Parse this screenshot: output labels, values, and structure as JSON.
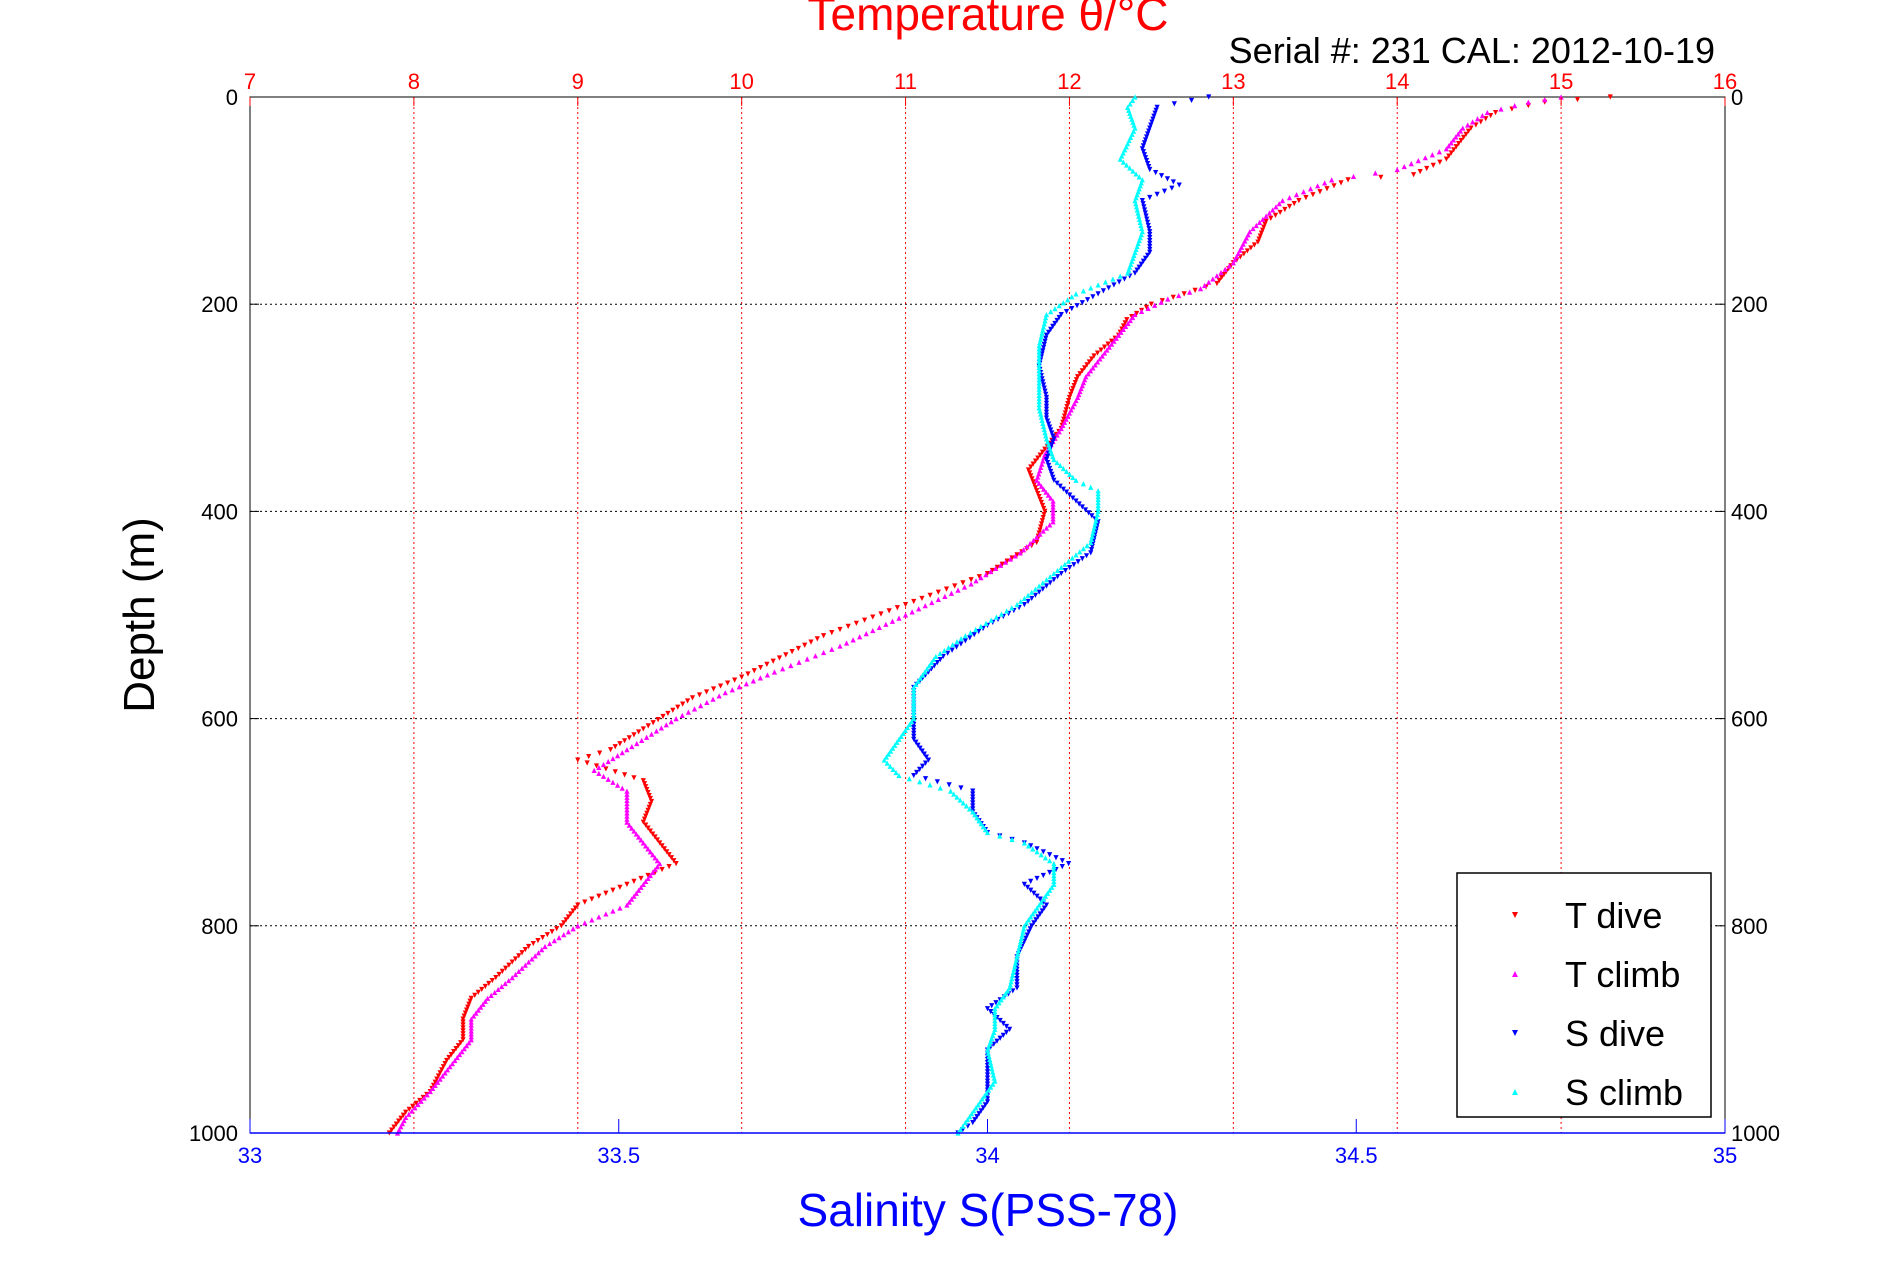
{
  "chart_data": {
    "type": "scatter",
    "header": "Serial #: 231  CAL: 2012-10-19",
    "x_top": {
      "label": "Temperature θ/°C",
      "range": [
        7,
        16
      ],
      "ticks": [
        "7",
        "8",
        "9",
        "10",
        "11",
        "12",
        "13",
        "14",
        "15",
        "16"
      ],
      "color": "#ff0000"
    },
    "x_bottom": {
      "label": "Salinity S(PSS-78)",
      "range": [
        33,
        35
      ],
      "ticks": [
        "33",
        "33.5",
        "34",
        "34.5",
        "35"
      ],
      "color": "#0000ff"
    },
    "y": {
      "label": "Depth (m)",
      "range": [
        0,
        1000
      ],
      "reversed": true,
      "ticks": [
        "0",
        "200",
        "400",
        "600",
        "800",
        "1000"
      ]
    },
    "grid": "on",
    "legend": {
      "position": "bottom-right",
      "entries": [
        "T dive",
        "T climb",
        "S dive",
        "S climb"
      ]
    },
    "series": [
      {
        "name": "T dive",
        "axis": "temperature",
        "color": "#ff0000",
        "marker": "triangle-down",
        "points": [
          [
            15.3,
            0
          ],
          [
            14.9,
            5
          ],
          [
            14.6,
            15
          ],
          [
            14.45,
            30
          ],
          [
            14.3,
            60
          ],
          [
            14.1,
            75
          ],
          [
            13.7,
            80
          ],
          [
            13.4,
            100
          ],
          [
            13.2,
            120
          ],
          [
            13.15,
            140
          ],
          [
            13.0,
            160
          ],
          [
            12.9,
            180
          ],
          [
            12.7,
            190
          ],
          [
            12.5,
            200
          ],
          [
            12.35,
            215
          ],
          [
            12.3,
            230
          ],
          [
            12.15,
            250
          ],
          [
            12.05,
            270
          ],
          [
            12.0,
            290
          ],
          [
            11.95,
            320
          ],
          [
            11.85,
            340
          ],
          [
            11.75,
            360
          ],
          [
            11.8,
            380
          ],
          [
            11.85,
            400
          ],
          [
            11.8,
            430
          ],
          [
            11.5,
            460
          ],
          [
            11.0,
            490
          ],
          [
            10.5,
            520
          ],
          [
            10.0,
            560
          ],
          [
            9.7,
            580
          ],
          [
            9.4,
            610
          ],
          [
            9.2,
            630
          ],
          [
            9.0,
            640
          ],
          [
            9.4,
            660
          ],
          [
            9.45,
            680
          ],
          [
            9.4,
            700
          ],
          [
            9.5,
            720
          ],
          [
            9.6,
            740
          ],
          [
            9.3,
            760
          ],
          [
            9.0,
            780
          ],
          [
            8.9,
            800
          ],
          [
            8.7,
            820
          ],
          [
            8.5,
            850
          ],
          [
            8.35,
            870
          ],
          [
            8.3,
            890
          ],
          [
            8.3,
            910
          ],
          [
            8.2,
            930
          ],
          [
            8.1,
            960
          ],
          [
            7.95,
            980
          ],
          [
            7.85,
            1000
          ]
        ]
      },
      {
        "name": "T climb",
        "axis": "temperature",
        "color": "#ff00ff",
        "marker": "triangle-up",
        "points": [
          [
            15.0,
            0
          ],
          [
            14.8,
            5
          ],
          [
            14.55,
            15
          ],
          [
            14.4,
            30
          ],
          [
            14.3,
            50
          ],
          [
            14.0,
            70
          ],
          [
            13.6,
            80
          ],
          [
            13.3,
            100
          ],
          [
            13.1,
            130
          ],
          [
            13.0,
            160
          ],
          [
            12.8,
            185
          ],
          [
            12.6,
            195
          ],
          [
            12.4,
            210
          ],
          [
            12.3,
            230
          ],
          [
            12.2,
            250
          ],
          [
            12.1,
            270
          ],
          [
            12.05,
            290
          ],
          [
            11.95,
            320
          ],
          [
            11.85,
            345
          ],
          [
            11.8,
            370
          ],
          [
            11.9,
            390
          ],
          [
            11.9,
            410
          ],
          [
            11.7,
            440
          ],
          [
            11.4,
            470
          ],
          [
            11.0,
            500
          ],
          [
            10.6,
            530
          ],
          [
            10.2,
            555
          ],
          [
            9.9,
            575
          ],
          [
            9.6,
            600
          ],
          [
            9.3,
            630
          ],
          [
            9.1,
            650
          ],
          [
            9.3,
            670
          ],
          [
            9.3,
            700
          ],
          [
            9.4,
            720
          ],
          [
            9.5,
            740
          ],
          [
            9.4,
            760
          ],
          [
            9.3,
            780
          ],
          [
            9.0,
            800
          ],
          [
            8.8,
            820
          ],
          [
            8.6,
            850
          ],
          [
            8.45,
            870
          ],
          [
            8.35,
            890
          ],
          [
            8.35,
            910
          ],
          [
            8.25,
            930
          ],
          [
            8.1,
            960
          ],
          [
            7.95,
            985
          ],
          [
            7.9,
            1000
          ]
        ]
      },
      {
        "name": "S dive",
        "axis": "salinity",
        "color": "#0000ff",
        "marker": "triangle-down",
        "points": [
          [
            34.3,
            0
          ],
          [
            34.23,
            10
          ],
          [
            34.22,
            30
          ],
          [
            34.21,
            50
          ],
          [
            34.22,
            70
          ],
          [
            34.26,
            85
          ],
          [
            34.21,
            100
          ],
          [
            34.22,
            130
          ],
          [
            34.22,
            150
          ],
          [
            34.2,
            170
          ],
          [
            34.15,
            190
          ],
          [
            34.1,
            210
          ],
          [
            34.08,
            230
          ],
          [
            34.07,
            260
          ],
          [
            34.08,
            290
          ],
          [
            34.08,
            310
          ],
          [
            34.09,
            330
          ],
          [
            34.08,
            350
          ],
          [
            34.09,
            370
          ],
          [
            34.12,
            390
          ],
          [
            34.15,
            410
          ],
          [
            34.14,
            440
          ],
          [
            34.1,
            460
          ],
          [
            34.05,
            490
          ],
          [
            34.0,
            510
          ],
          [
            33.94,
            540
          ],
          [
            33.9,
            570
          ],
          [
            33.9,
            600
          ],
          [
            33.9,
            620
          ],
          [
            33.92,
            640
          ],
          [
            33.9,
            655
          ],
          [
            33.98,
            670
          ],
          [
            33.98,
            690
          ],
          [
            34.0,
            710
          ],
          [
            34.05,
            720
          ],
          [
            34.11,
            740
          ],
          [
            34.05,
            760
          ],
          [
            34.08,
            780
          ],
          [
            34.06,
            800
          ],
          [
            34.04,
            830
          ],
          [
            34.04,
            860
          ],
          [
            34.0,
            880
          ],
          [
            34.03,
            900
          ],
          [
            34.0,
            920
          ],
          [
            34.0,
            950
          ],
          [
            34.0,
            970
          ],
          [
            33.98,
            990
          ],
          [
            33.96,
            1000
          ]
        ]
      },
      {
        "name": "S climb",
        "axis": "salinity",
        "color": "#00ffff",
        "marker": "triangle-up",
        "points": [
          [
            34.2,
            0
          ],
          [
            34.19,
            10
          ],
          [
            34.2,
            30
          ],
          [
            34.18,
            60
          ],
          [
            34.21,
            80
          ],
          [
            34.2,
            100
          ],
          [
            34.21,
            130
          ],
          [
            34.2,
            150
          ],
          [
            34.19,
            170
          ],
          [
            34.12,
            190
          ],
          [
            34.08,
            210
          ],
          [
            34.07,
            240
          ],
          [
            34.07,
            270
          ],
          [
            34.07,
            300
          ],
          [
            34.08,
            330
          ],
          [
            34.09,
            350
          ],
          [
            34.12,
            370
          ],
          [
            34.15,
            380
          ],
          [
            34.15,
            400
          ],
          [
            34.14,
            430
          ],
          [
            34.09,
            460
          ],
          [
            34.04,
            490
          ],
          [
            33.97,
            520
          ],
          [
            33.93,
            540
          ],
          [
            33.9,
            570
          ],
          [
            33.9,
            600
          ],
          [
            33.88,
            620
          ],
          [
            33.86,
            640
          ],
          [
            33.88,
            655
          ],
          [
            33.95,
            670
          ],
          [
            33.98,
            690
          ],
          [
            34.0,
            710
          ],
          [
            34.05,
            720
          ],
          [
            34.09,
            740
          ],
          [
            34.09,
            760
          ],
          [
            34.07,
            780
          ],
          [
            34.05,
            800
          ],
          [
            34.04,
            830
          ],
          [
            34.03,
            860
          ],
          [
            34.01,
            880
          ],
          [
            34.01,
            900
          ],
          [
            34.0,
            920
          ],
          [
            34.01,
            950
          ],
          [
            33.99,
            970
          ],
          [
            33.97,
            990
          ],
          [
            33.96,
            1000
          ]
        ]
      }
    ]
  }
}
